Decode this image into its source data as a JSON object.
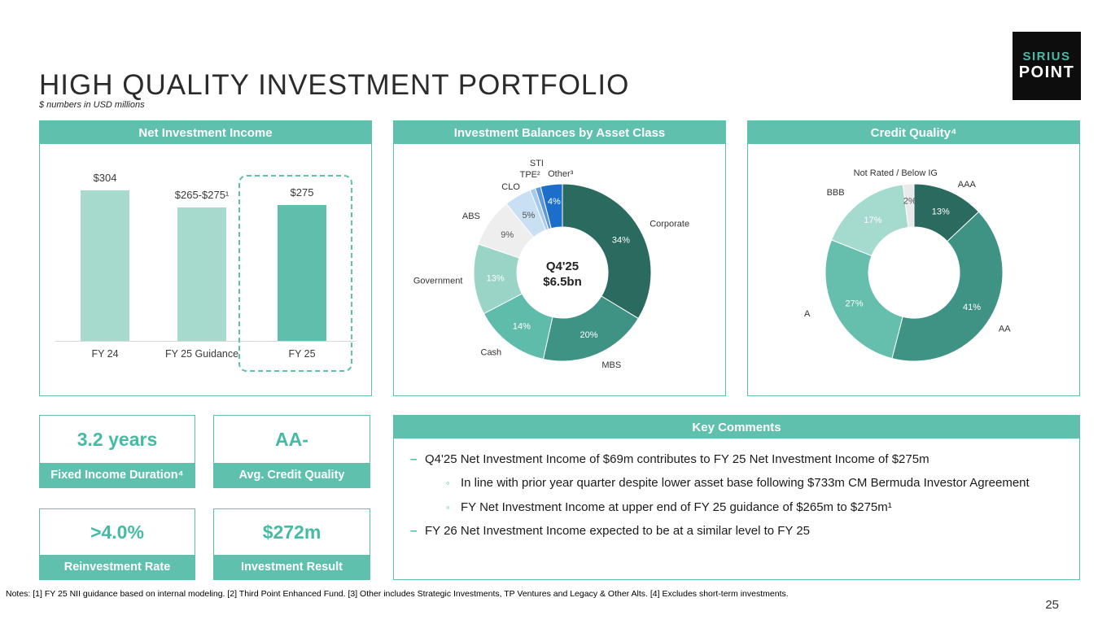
{
  "slide": {
    "title": "HIGH QUALITY INVESTMENT PORTFOLIO",
    "subtitle": "$ numbers in USD millions",
    "page_number": "25",
    "notes": "Notes: [1] FY 25 NII guidance based on internal modeling. [2] Third Point Enhanced Fund. [3] Other includes Strategic Investments, TP Ventures and Legacy & Other Alts. [4] Excludes short-term investments."
  },
  "logo": {
    "line1": "SIRIUS",
    "line2": "POINT"
  },
  "colors": {
    "accent": "#5FC0AE",
    "accent_text": "#44BBA4",
    "dark_teal": "#2B6A5E"
  },
  "chart_data": [
    {
      "type": "bar",
      "title": "Net Investment Income",
      "categories": [
        "FY 24",
        "FY 25 Guidance",
        "FY 25"
      ],
      "values": [
        304,
        270,
        275
      ],
      "value_labels": [
        "$304",
        "$265-$275¹",
        "$275"
      ],
      "bar_colors": [
        "#A6DACD",
        "#A6DACD",
        "#5FBFAC"
      ],
      "highlight_index": 2,
      "ylim": [
        0,
        304
      ],
      "grid": false
    },
    {
      "type": "pie",
      "title": "Investment Balances by Asset Class",
      "center_label_line1": "Q4'25",
      "center_label_line2": "$6.5bn",
      "slices": [
        {
          "label": "Corporate",
          "value": 34,
          "pct": "34%",
          "color": "#2B6A5E"
        },
        {
          "label": "MBS",
          "value": 20,
          "pct": "20%",
          "color": "#3F9384"
        },
        {
          "label": "Cash",
          "value": 14,
          "pct": "14%",
          "color": "#5FBCAB"
        },
        {
          "label": "Government",
          "value": 13,
          "pct": "13%",
          "color": "#9AD4C6"
        },
        {
          "label": "ABS",
          "value": 9,
          "pct": "9%",
          "color": "#EDEEED"
        },
        {
          "label": "CLO",
          "value": 5,
          "pct": "5%",
          "color": "#C9DFF4"
        },
        {
          "label": "TPE²",
          "value": 1,
          "pct": "",
          "color": "#A6C9EC"
        },
        {
          "label": "STI",
          "value": 1,
          "pct": "",
          "color": "#5E97D8"
        },
        {
          "label": "Other³",
          "value": 4,
          "pct": "4%",
          "color": "#1B6EC9"
        }
      ]
    },
    {
      "type": "pie",
      "title": "Credit Quality⁴",
      "slices": [
        {
          "label": "AAA",
          "value": 13,
          "pct": "13%",
          "color": "#2B6A5E"
        },
        {
          "label": "AA",
          "value": 41,
          "pct": "41%",
          "color": "#3F9384"
        },
        {
          "label": "A",
          "value": 27,
          "pct": "27%",
          "color": "#66BEAC"
        },
        {
          "label": "BBB",
          "value": 17,
          "pct": "17%",
          "color": "#A5DACE"
        },
        {
          "label": "Not Rated / Below IG",
          "value": 2,
          "pct": "2%",
          "color": "#E9EAE9"
        }
      ]
    }
  ],
  "stats": [
    {
      "value": "3.2 years",
      "label": "Fixed Income Duration⁴"
    },
    {
      "value": "AA-",
      "label": "Avg. Credit Quality"
    },
    {
      "value": ">4.0%",
      "label": "Reinvestment Rate"
    },
    {
      "value": "$272m",
      "label": "Investment Result"
    }
  ],
  "key_comments": {
    "title": "Key Comments",
    "items": [
      {
        "level": 1,
        "text": "Q4'25 Net Investment Income of $69m contributes to FY 25 Net Investment Income of $275m"
      },
      {
        "level": 2,
        "text": "In line with prior year quarter despite lower asset base following $733m CM Bermuda Investor Agreement"
      },
      {
        "level": 2,
        "text": "FY Net Investment Income at upper end of FY 25 guidance of $265m to $275m¹"
      },
      {
        "level": 1,
        "text": "FY 26 Net Investment Income expected to be at a similar level to FY 25"
      }
    ]
  }
}
